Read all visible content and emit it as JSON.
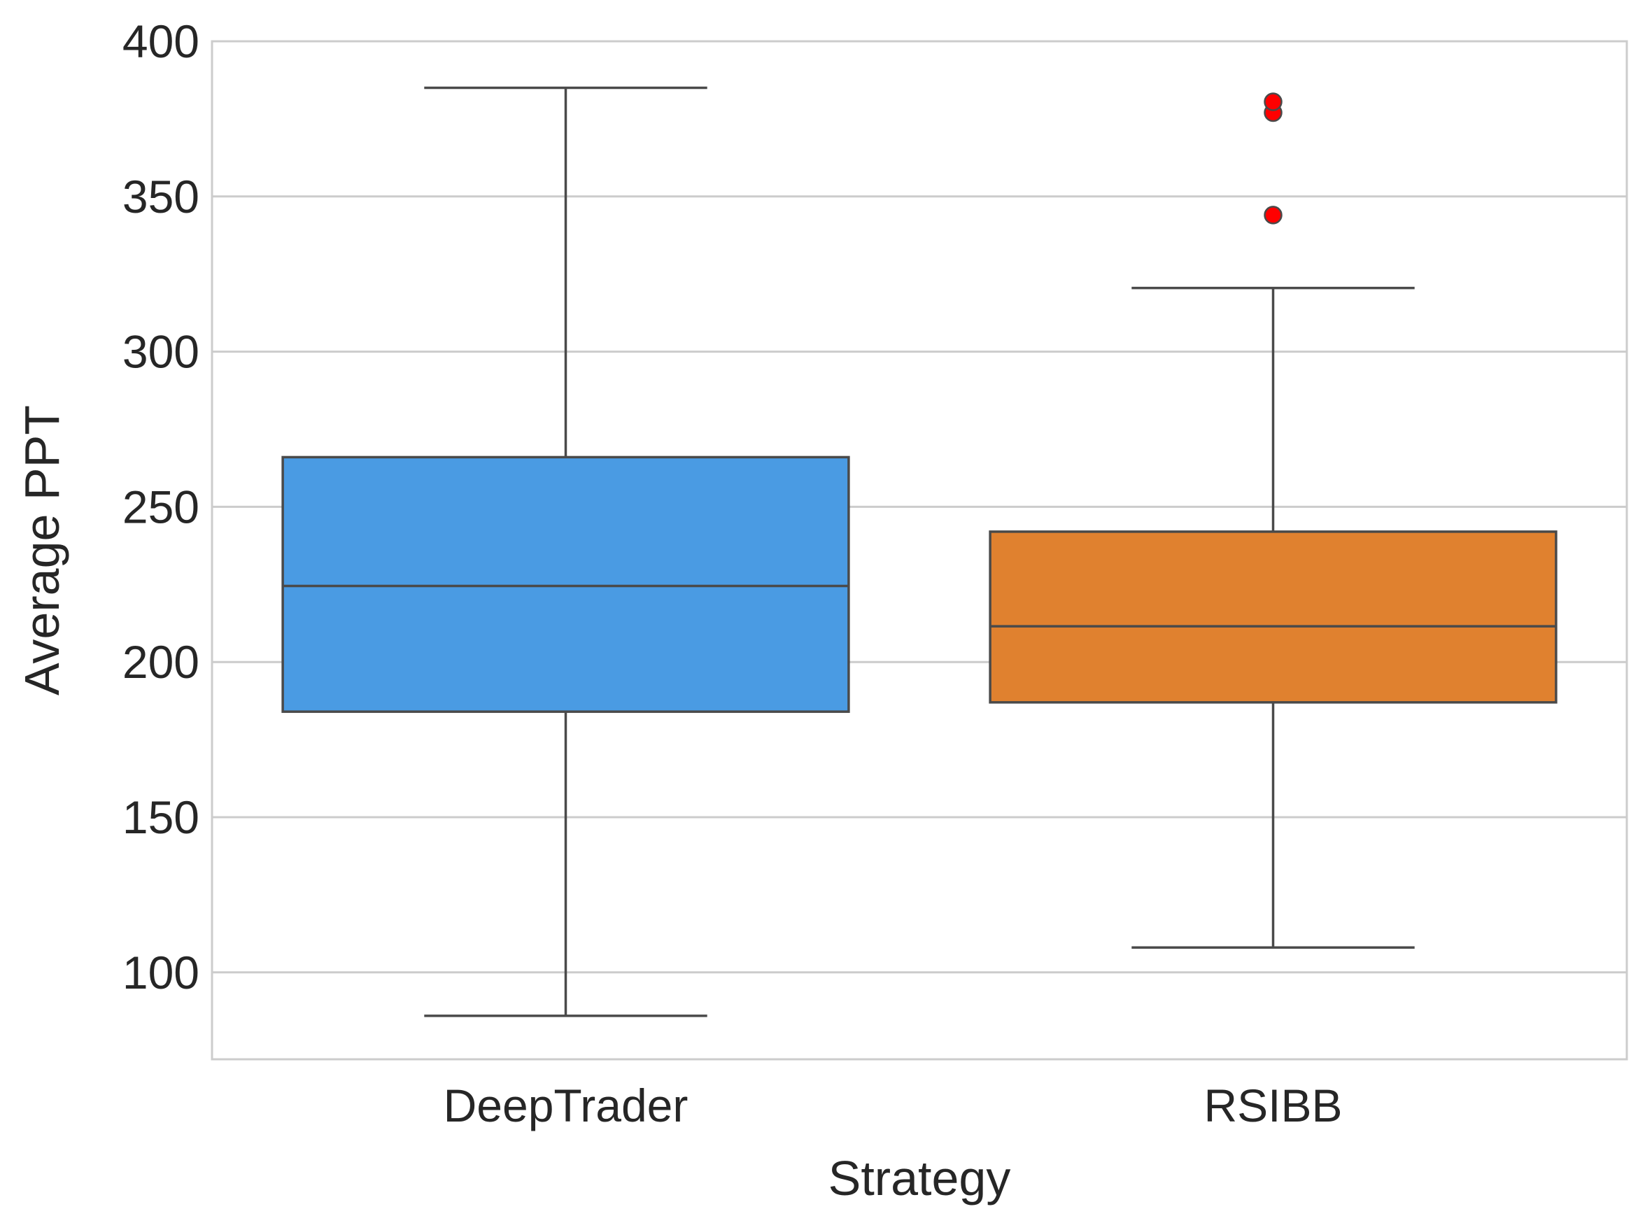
{
  "chart_data": {
    "type": "box",
    "xlabel": "Strategy",
    "ylabel": "Average PPT",
    "ylim": [
      72,
      400
    ],
    "yticks": [
      100,
      150,
      200,
      250,
      300,
      350,
      400
    ],
    "grid": "horizontal",
    "categories": [
      "DeepTrader",
      "RSIBB"
    ],
    "boxes": [
      {
        "category": "DeepTrader",
        "color": "#4a9be3",
        "whisker_low": 86,
        "q1": 184,
        "median": 224.5,
        "q3": 266,
        "whisker_high": 385,
        "outliers": []
      },
      {
        "category": "RSIBB",
        "color": "#e0812f",
        "whisker_low": 108,
        "q1": 187,
        "median": 211.5,
        "q3": 242,
        "whisker_high": 320.5,
        "outliers": [
          344,
          377,
          380.5
        ]
      }
    ],
    "outlier_color": "#ff0000",
    "line_color": "#4a4a4a",
    "grid_color": "#cccccc"
  }
}
